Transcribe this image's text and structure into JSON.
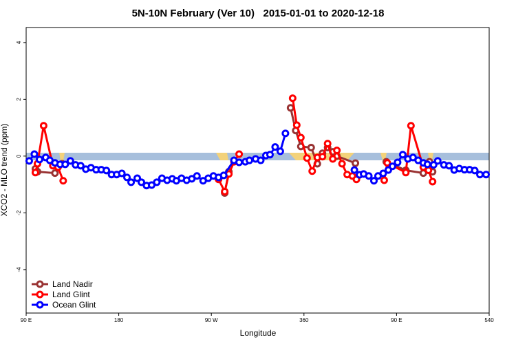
{
  "chart_data": {
    "type": "line",
    "title": "5N-10N February (Ver 10)   2015-01-01 to 2020-12-18",
    "x_label": "Longitude",
    "y_label": "XCO2 - MLO trend (ppm)",
    "xlim": [
      90,
      540
    ],
    "ylim": [
      -5.53,
      4.53
    ],
    "xticks": [
      {
        "value": 90,
        "label": "90 E"
      },
      180,
      {
        "value": 270,
        "label": "90 W"
      },
      360,
      {
        "value": 450,
        "label": "90 E"
      },
      540
    ],
    "yticks": [
      -4,
      -2,
      0,
      2,
      4
    ],
    "legend": "bottom-left",
    "series": [
      {
        "name": "Land Nadir",
        "color": "#993333",
        "x": [
          99,
          101,
          118,
          125,
          null,
          283,
          287,
          null,
          347,
          352,
          357,
          367,
          373,
          378,
          383,
          388,
          392,
          410,
          null,
          440,
          459,
          476,
          482,
          485
        ],
        "values": [
          -0.45,
          -0.55,
          -0.6,
          -0.27,
          null,
          -1.3,
          -0.55,
          null,
          1.7,
          0.9,
          0.34,
          0.3,
          -0.27,
          0.1,
          0.3,
          0.15,
          0.0,
          -0.25,
          null,
          -0.2,
          -0.5,
          -0.6,
          -0.2,
          -0.55
        ]
      },
      {
        "name": "Land Glint",
        "color": "#ff0000",
        "x": [
          99,
          101,
          107,
          116,
          121,
          126,
          null,
          277,
          283,
          287,
          292,
          297,
          null,
          349,
          353,
          357,
          363,
          368,
          373,
          378,
          383,
          388,
          392,
          397,
          402,
          407,
          411,
          null,
          438,
          441,
          459,
          464,
          476,
          481,
          485
        ],
        "values": [
          -0.58,
          -0.27,
          1.07,
          -0.34,
          -0.39,
          -0.87,
          null,
          -0.82,
          -1.25,
          -0.63,
          -0.2,
          0.07,
          null,
          2.04,
          1.09,
          0.65,
          -0.07,
          -0.53,
          -0.05,
          -0.02,
          0.44,
          -0.1,
          0.2,
          -0.27,
          -0.65,
          -0.7,
          -0.82,
          null,
          -0.85,
          -0.24,
          -0.58,
          1.07,
          -0.39,
          -0.5,
          -0.9
        ]
      },
      {
        "name": "Ocean Glint",
        "color": "#0000ff",
        "x": [
          93,
          98,
          103,
          109,
          113,
          118,
          123,
          128,
          133,
          138,
          143,
          148,
          153,
          158,
          163,
          168,
          173,
          178,
          183,
          188,
          192,
          198,
          202,
          207,
          212,
          217,
          222,
          227,
          232,
          236,
          241,
          246,
          251,
          256,
          262,
          267,
          272,
          277,
          282,
          292,
          297,
          303,
          307,
          313,
          318,
          323,
          327,
          332,
          337,
          342,
          null,
          409,
          414,
          418,
          423,
          428,
          432,
          437,
          442,
          446,
          451,
          456,
          461,
          466,
          471,
          476,
          480,
          486,
          490,
          496,
          501,
          506,
          511,
          516,
          521,
          526,
          531,
          537
        ],
        "values": [
          -0.17,
          0.07,
          -0.12,
          -0.05,
          -0.15,
          -0.24,
          -0.29,
          -0.29,
          -0.17,
          -0.31,
          -0.34,
          -0.46,
          -0.41,
          -0.48,
          -0.48,
          -0.51,
          -0.65,
          -0.65,
          -0.61,
          -0.75,
          -0.92,
          -0.78,
          -0.92,
          -1.04,
          -1.02,
          -0.92,
          -0.78,
          -0.85,
          -0.8,
          -0.87,
          -0.78,
          -0.85,
          -0.8,
          -0.7,
          -0.87,
          -0.78,
          -0.7,
          -0.75,
          -0.68,
          -0.15,
          -0.22,
          -0.2,
          -0.15,
          -0.1,
          -0.15,
          0.02,
          0.05,
          0.32,
          0.17,
          0.8,
          null,
          -0.49,
          -0.66,
          -0.63,
          -0.7,
          -0.87,
          -0.7,
          -0.61,
          -0.49,
          -0.36,
          -0.22,
          0.05,
          -0.1,
          -0.05,
          -0.15,
          -0.24,
          -0.29,
          -0.31,
          -0.17,
          -0.31,
          -0.34,
          -0.49,
          -0.44,
          -0.48,
          -0.48,
          -0.51,
          -0.65,
          -0.65
        ]
      }
    ]
  }
}
